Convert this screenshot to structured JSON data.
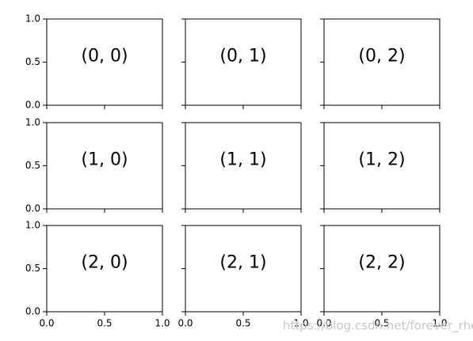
{
  "chart_data": [
    {
      "type": "blank",
      "annotation": "(0, 0)",
      "xlim": [
        0,
        1
      ],
      "ylim": [
        0,
        1
      ],
      "xticks": [
        0,
        0.5,
        1
      ],
      "yticks": [
        {
          "value": 0,
          "label": "0.0"
        },
        {
          "value": 0.5,
          "label": "0.5"
        },
        {
          "value": 1,
          "label": "1.0"
        }
      ]
    },
    {
      "type": "blank",
      "annotation": "(0, 1)",
      "xlim": [
        0,
        1
      ],
      "ylim": [
        0,
        1
      ],
      "xticks": [
        0,
        0.5,
        1
      ],
      "yticks": [
        0,
        0.5,
        1
      ]
    },
    {
      "type": "blank",
      "annotation": "(0, 2)",
      "xlim": [
        0,
        1
      ],
      "ylim": [
        0,
        1
      ],
      "xticks": [
        0,
        0.5,
        1
      ],
      "yticks": [
        0,
        0.5,
        1
      ]
    },
    {
      "type": "blank",
      "annotation": "(1, 0)",
      "xlim": [
        0,
        1
      ],
      "ylim": [
        0,
        1
      ],
      "xticks": [
        0,
        0.5,
        1
      ],
      "yticks": [
        {
          "value": 0,
          "label": "0.0"
        },
        {
          "value": 0.5,
          "label": "0.5"
        },
        {
          "value": 1,
          "label": "1.0"
        }
      ]
    },
    {
      "type": "blank",
      "annotation": "(1, 1)",
      "xlim": [
        0,
        1
      ],
      "ylim": [
        0,
        1
      ],
      "xticks": [
        0,
        0.5,
        1
      ],
      "yticks": [
        0,
        0.5,
        1
      ]
    },
    {
      "type": "blank",
      "annotation": "(1, 2)",
      "xlim": [
        0,
        1
      ],
      "ylim": [
        0,
        1
      ],
      "xticks": [
        0,
        0.5,
        1
      ],
      "yticks": [
        0,
        0.5,
        1
      ]
    },
    {
      "type": "blank",
      "annotation": "(2, 0)",
      "xlim": [
        0,
        1
      ],
      "ylim": [
        0,
        1
      ],
      "xticks": [
        {
          "value": 0,
          "label": "0.0"
        },
        {
          "value": 0.5,
          "label": "0.5"
        },
        {
          "value": 1,
          "label": "1.0"
        }
      ],
      "yticks": [
        {
          "value": 0,
          "label": "0.0"
        },
        {
          "value": 0.5,
          "label": "0.5"
        },
        {
          "value": 1,
          "label": "1.0"
        }
      ]
    },
    {
      "type": "blank",
      "annotation": "(2, 1)",
      "xlim": [
        0,
        1
      ],
      "ylim": [
        0,
        1
      ],
      "xticks": [
        {
          "value": 0,
          "label": "0.0"
        },
        {
          "value": 0.5,
          "label": "0.5"
        },
        {
          "value": 1,
          "label": "1.0"
        }
      ],
      "yticks": [
        0,
        0.5,
        1
      ]
    },
    {
      "type": "blank",
      "annotation": "(2, 2)",
      "xlim": [
        0,
        1
      ],
      "ylim": [
        0,
        1
      ],
      "xticks": [
        {
          "value": 0,
          "label": "0.0"
        },
        {
          "value": 0.5,
          "label": "0.5"
        },
        {
          "value": 1,
          "label": "1.0"
        }
      ],
      "yticks": [
        0,
        0.5,
        1
      ]
    }
  ],
  "watermark": "https://blog.csdn.net/forever_rhen"
}
